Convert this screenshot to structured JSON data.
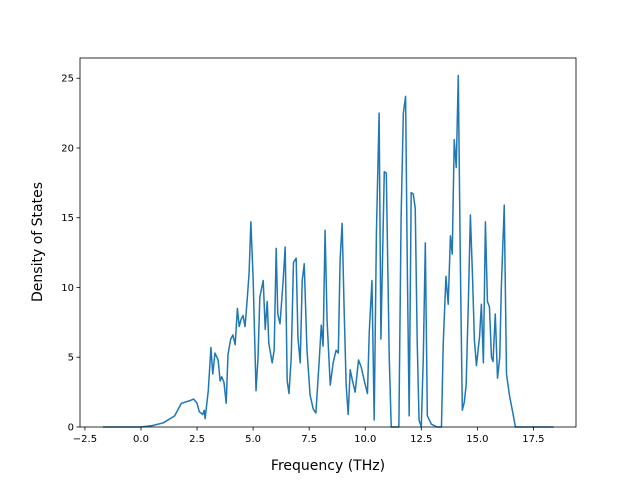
{
  "chart_data": {
    "type": "line",
    "x_label": "Frequency (THz)",
    "y_label": "Density of States",
    "xlim": [
      -2.72,
      19.4
    ],
    "ylim": [
      0,
      26.45
    ],
    "xticks": [
      {
        "value": -2.5,
        "label": "−2.5"
      },
      {
        "value": 0,
        "label": "0.0"
      },
      {
        "value": 2.5,
        "label": "2.5"
      },
      {
        "value": 5,
        "label": "5.0"
      },
      {
        "value": 7.5,
        "label": "7.5"
      },
      {
        "value": 10,
        "label": "10.0"
      },
      {
        "value": 12.5,
        "label": "12.5"
      },
      {
        "value": 15,
        "label": "15.0"
      },
      {
        "value": 17.5,
        "label": "17.5"
      }
    ],
    "yticks": [
      0,
      5,
      10,
      15,
      20,
      25
    ],
    "grid": false,
    "series": [
      {
        "color": "#1f77b4",
        "x": [
          -1.7,
          0,
          0.5,
          1.0,
          1.5,
          1.8,
          2.2,
          2.35,
          2.5,
          2.6,
          2.75,
          2.82,
          2.86,
          3.0,
          3.12,
          3.2,
          3.3,
          3.44,
          3.53,
          3.6,
          3.7,
          3.8,
          3.88,
          4.0,
          4.1,
          4.2,
          4.3,
          4.38,
          4.46,
          4.55,
          4.64,
          4.73,
          4.82,
          4.9,
          5.0,
          5.13,
          5.22,
          5.3,
          5.45,
          5.54,
          5.63,
          5.7,
          5.85,
          5.94,
          6.03,
          6.1,
          6.2,
          6.34,
          6.43,
          6.52,
          6.6,
          6.7,
          6.8,
          6.92,
          7.0,
          7.1,
          7.19,
          7.28,
          7.4,
          7.54,
          7.68,
          7.8,
          7.95,
          8.04,
          8.12,
          8.21,
          8.3,
          8.44,
          8.57,
          8.7,
          8.8,
          8.88,
          8.97,
          9.06,
          9.15,
          9.24,
          9.33,
          9.42,
          9.55,
          9.7,
          9.82,
          9.96,
          10.1,
          10.18,
          10.3,
          10.4,
          10.5,
          10.62,
          10.7,
          10.85,
          10.94,
          11.07,
          11.16,
          11.5,
          11.6,
          11.7,
          11.8,
          11.88,
          11.96,
          12.05,
          12.14,
          12.23,
          12.32,
          12.4,
          12.5,
          12.59,
          12.68,
          12.77,
          12.95,
          13.2,
          13.4,
          13.48,
          13.6,
          13.7,
          13.8,
          13.88,
          13.97,
          14.06,
          14.15,
          14.24,
          14.33,
          14.42,
          14.5,
          14.6,
          14.69,
          14.78,
          14.87,
          14.96,
          15.1,
          15.18,
          15.27,
          15.36,
          15.45,
          15.54,
          15.63,
          15.7,
          15.8,
          15.9,
          16.0,
          16.07,
          16.2,
          16.3,
          16.43,
          16.56,
          16.7,
          16.9,
          18.4
        ],
        "values": [
          0,
          0,
          0.1,
          0.3,
          0.8,
          1.7,
          1.9,
          2.0,
          1.7,
          1.1,
          0.9,
          1.2,
          0.6,
          2.6,
          5.7,
          3.8,
          5.3,
          4.8,
          3.3,
          3.6,
          3.2,
          1.7,
          5.2,
          6.3,
          6.6,
          5.9,
          8.5,
          7.2,
          7.7,
          8.0,
          7.2,
          9.0,
          11.0,
          14.7,
          10.7,
          2.6,
          5.0,
          9.3,
          10.5,
          7.0,
          9.0,
          6.0,
          4.6,
          5.5,
          12.8,
          8.1,
          7.4,
          10.5,
          12.9,
          3.3,
          2.4,
          5.0,
          11.8,
          12.1,
          6.4,
          4.6,
          10.5,
          11.7,
          5.6,
          2.3,
          1.3,
          1.0,
          4.8,
          7.3,
          5.8,
          14.1,
          7.6,
          3.0,
          4.6,
          5.5,
          5.3,
          12.0,
          14.6,
          8.4,
          3.0,
          0.9,
          4.1,
          3.4,
          2.5,
          4.8,
          4.3,
          3.3,
          2.4,
          6.8,
          10.5,
          0.5,
          14.0,
          22.5,
          6.3,
          18.3,
          18.2,
          5.0,
          0,
          0,
          15.0,
          22.5,
          23.7,
          11.0,
          0.8,
          16.8,
          16.7,
          15.7,
          6.0,
          0.5,
          0,
          5.0,
          13.2,
          0.8,
          0.2,
          0,
          0,
          6.0,
          10.8,
          8.8,
          13.7,
          12.4,
          20.6,
          18.6,
          25.2,
          12.0,
          1.2,
          1.8,
          3.0,
          9.0,
          15.2,
          11.0,
          6.2,
          4.4,
          6.5,
          8.8,
          4.6,
          14.7,
          9.0,
          8.6,
          5.0,
          4.7,
          8.1,
          3.5,
          5.0,
          10.0,
          15.9,
          3.8,
          2.3,
          1.2,
          0,
          0,
          0
        ]
      }
    ]
  }
}
